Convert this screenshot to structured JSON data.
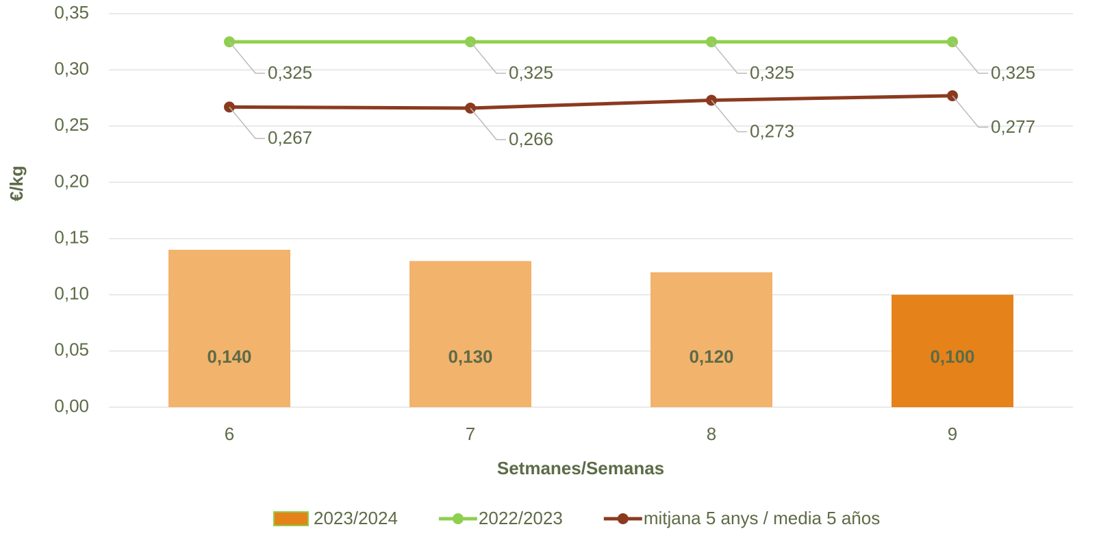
{
  "chart_data": {
    "type": "bar",
    "xlabel": "Setmanes/Semanas",
    "ylabel": "€/kg",
    "categories": [
      "6",
      "7",
      "8",
      "9"
    ],
    "ylim": [
      0,
      0.35
    ],
    "yticks": [
      {
        "value": 0,
        "label": "0,00"
      },
      {
        "value": 0.05,
        "label": "0,05"
      },
      {
        "value": 0.1,
        "label": "0,10"
      },
      {
        "value": 0.15,
        "label": "0,15"
      },
      {
        "value": 0.2,
        "label": "0,20"
      },
      {
        "value": 0.25,
        "label": "0,25"
      },
      {
        "value": 0.3,
        "label": "0,30"
      },
      {
        "value": 0.35,
        "label": "0,35"
      }
    ],
    "grid": true,
    "legend": "bottom",
    "series": [
      {
        "name": "2023/2024",
        "type": "bar",
        "color": "#e5821a",
        "colors": [
          "#f2b36d",
          "#f2b36d",
          "#f2b36d",
          "#e5821a"
        ],
        "values": [
          0.14,
          0.13,
          0.12,
          0.1
        ],
        "value_labels": [
          "0,140",
          "0,130",
          "0,120",
          "0,100"
        ]
      },
      {
        "name": "2022/2023",
        "type": "line",
        "color": "#8fcf4f",
        "values": [
          0.325,
          0.325,
          0.325,
          0.325
        ],
        "value_labels": [
          "0,325",
          "0,325",
          "0,325",
          "0,325"
        ]
      },
      {
        "name": "mitjana 5 anys / media 5 años",
        "type": "line",
        "color": "#8b3a1f",
        "values": [
          0.267,
          0.266,
          0.273,
          0.277
        ],
        "value_labels": [
          "0,267",
          "0,266",
          "0,273",
          "0,277"
        ]
      }
    ]
  }
}
